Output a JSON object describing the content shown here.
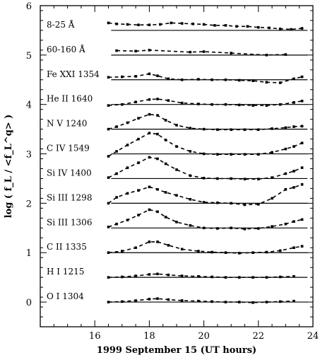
{
  "chart_data": {
    "type": "line",
    "title": "",
    "xlabel": "1999 September 15 (UT hours)",
    "ylabel": "log ( f_L / <f_L^q> )",
    "xlim": [
      14,
      24
    ],
    "ylim": [
      -0.5,
      6
    ],
    "xticks": [
      16,
      18,
      20,
      22,
      24
    ],
    "yticks": [
      0,
      1,
      2,
      3,
      4,
      5,
      6
    ],
    "series": [
      {
        "name": "O I 1304",
        "baseline": 0.0,
        "x": [
          16.5,
          17.0,
          17.5,
          18.0,
          18.3,
          18.7,
          19.2,
          19.8,
          20.3,
          20.8,
          21.3,
          21.8,
          22.3,
          22.8,
          23.3
        ],
        "y": [
          0.0,
          0.01,
          0.03,
          0.06,
          0.07,
          0.05,
          0.03,
          0.02,
          0.01,
          0.0,
          0.0,
          -0.01,
          0.0,
          0.01,
          0.02
        ]
      },
      {
        "name": "H I 1215",
        "baseline": 0.5,
        "x": [
          16.5,
          17.0,
          17.5,
          18.0,
          18.3,
          18.7,
          19.2,
          19.8,
          20.3,
          20.8,
          21.3,
          21.8,
          22.3,
          22.8,
          23.3
        ],
        "y": [
          0.5,
          0.51,
          0.53,
          0.56,
          0.57,
          0.55,
          0.53,
          0.52,
          0.51,
          0.5,
          0.5,
          0.5,
          0.5,
          0.51,
          0.52
        ]
      },
      {
        "name": "C II 1335",
        "baseline": 1.0,
        "x": [
          16.5,
          17.0,
          17.5,
          18.0,
          18.3,
          18.7,
          19.2,
          19.8,
          20.3,
          20.8,
          21.3,
          21.8,
          22.3,
          22.8,
          23.3,
          23.6
        ],
        "y": [
          1.0,
          1.03,
          1.1,
          1.22,
          1.22,
          1.15,
          1.07,
          1.03,
          1.01,
          1.0,
          0.99,
          1.0,
          1.01,
          1.04,
          1.1,
          1.13
        ]
      },
      {
        "name": "Si III 1306",
        "baseline": 1.5,
        "x": [
          16.5,
          16.8,
          17.2,
          17.6,
          18.0,
          18.3,
          18.6,
          19.0,
          19.5,
          20.0,
          20.5,
          21.0,
          21.5,
          22.0,
          22.5,
          23.0,
          23.3,
          23.6
        ],
        "y": [
          1.52,
          1.58,
          1.66,
          1.76,
          1.87,
          1.83,
          1.72,
          1.62,
          1.55,
          1.5,
          1.49,
          1.5,
          1.48,
          1.49,
          1.53,
          1.58,
          1.63,
          1.67
        ]
      },
      {
        "name": "Si III 1298",
        "baseline": 2.0,
        "x": [
          16.5,
          16.8,
          17.2,
          17.6,
          18.0,
          18.3,
          18.6,
          19.0,
          19.5,
          20.0,
          20.5,
          21.0,
          21.5,
          22.0,
          22.5,
          23.0,
          23.3,
          23.6
        ],
        "y": [
          2.0,
          2.12,
          2.2,
          2.26,
          2.33,
          2.28,
          2.22,
          2.16,
          2.08,
          2.02,
          2.01,
          2.0,
          1.97,
          1.98,
          2.1,
          2.28,
          2.32,
          2.38
        ]
      },
      {
        "name": "Si IV 1400",
        "baseline": 2.5,
        "x": [
          16.5,
          16.8,
          17.2,
          17.6,
          18.0,
          18.3,
          18.6,
          19.0,
          19.5,
          20.0,
          20.5,
          21.0,
          21.5,
          22.0,
          22.5,
          23.0,
          23.3,
          23.6
        ],
        "y": [
          2.52,
          2.6,
          2.72,
          2.82,
          2.93,
          2.9,
          2.8,
          2.68,
          2.56,
          2.51,
          2.5,
          2.5,
          2.49,
          2.49,
          2.52,
          2.6,
          2.65,
          2.72
        ]
      },
      {
        "name": "C IV 1549",
        "baseline": 3.0,
        "x": [
          16.5,
          16.8,
          17.2,
          17.6,
          18.0,
          18.3,
          18.6,
          19.0,
          19.5,
          20.0,
          20.5,
          21.0,
          21.5,
          22.0,
          22.5,
          23.0,
          23.3,
          23.6
        ],
        "y": [
          2.95,
          3.05,
          3.18,
          3.3,
          3.42,
          3.4,
          3.28,
          3.15,
          3.05,
          3.0,
          2.99,
          2.99,
          2.99,
          2.99,
          3.03,
          3.1,
          3.15,
          3.22
        ]
      },
      {
        "name": "N V 1240",
        "baseline": 3.5,
        "x": [
          16.5,
          16.8,
          17.2,
          17.6,
          18.0,
          18.3,
          18.6,
          19.0,
          19.5,
          20.0,
          20.5,
          21.0,
          21.5,
          22.0,
          22.5,
          23.0,
          23.3,
          23.6
        ],
        "y": [
          3.5,
          3.55,
          3.63,
          3.72,
          3.8,
          3.78,
          3.68,
          3.58,
          3.52,
          3.5,
          3.49,
          3.49,
          3.49,
          3.49,
          3.51,
          3.53,
          3.55,
          3.56
        ]
      },
      {
        "name": "He II 1640",
        "baseline": 4.0,
        "x": [
          16.5,
          17.0,
          17.5,
          18.0,
          18.3,
          18.7,
          19.2,
          19.8,
          20.3,
          20.8,
          21.3,
          21.8,
          22.3,
          22.8,
          23.3,
          23.6
        ],
        "y": [
          3.98,
          4.0,
          4.05,
          4.1,
          4.11,
          4.08,
          4.03,
          4.01,
          4.0,
          4.0,
          3.99,
          3.98,
          3.98,
          4.0,
          4.04,
          4.07
        ]
      },
      {
        "name": "Fe XXI 1354",
        "baseline": 4.5,
        "x": [
          16.5,
          17.0,
          17.5,
          18.0,
          18.3,
          18.7,
          19.2,
          19.8,
          20.3,
          20.8,
          21.3,
          21.8,
          22.3,
          22.8,
          23.3,
          23.6
        ],
        "y": [
          4.55,
          4.56,
          4.57,
          4.62,
          4.58,
          4.52,
          4.5,
          4.51,
          4.5,
          4.5,
          4.49,
          4.48,
          4.45,
          4.44,
          4.52,
          4.56
        ]
      },
      {
        "name": "60-160 Å",
        "baseline": 5.0,
        "x": [
          16.8,
          17.5,
          18.0,
          19.5,
          20.0,
          21.0,
          22.3,
          23.0
        ],
        "y": [
          5.09,
          5.08,
          5.1,
          5.06,
          5.07,
          5.04,
          5.0,
          5.01
        ]
      },
      {
        "name": "8-25 Å",
        "baseline": 5.5,
        "x": [
          16.5,
          16.8,
          17.2,
          17.6,
          18.0,
          18.4,
          18.8,
          19.2,
          19.6,
          20.0,
          20.4,
          20.8,
          21.2,
          21.6,
          22.0,
          22.4,
          22.8,
          23.2,
          23.6
        ],
        "y": [
          5.65,
          5.63,
          5.62,
          5.61,
          5.61,
          5.62,
          5.65,
          5.64,
          5.63,
          5.62,
          5.6,
          5.6,
          5.58,
          5.58,
          5.56,
          5.55,
          5.53,
          5.52,
          5.54
        ]
      }
    ]
  }
}
